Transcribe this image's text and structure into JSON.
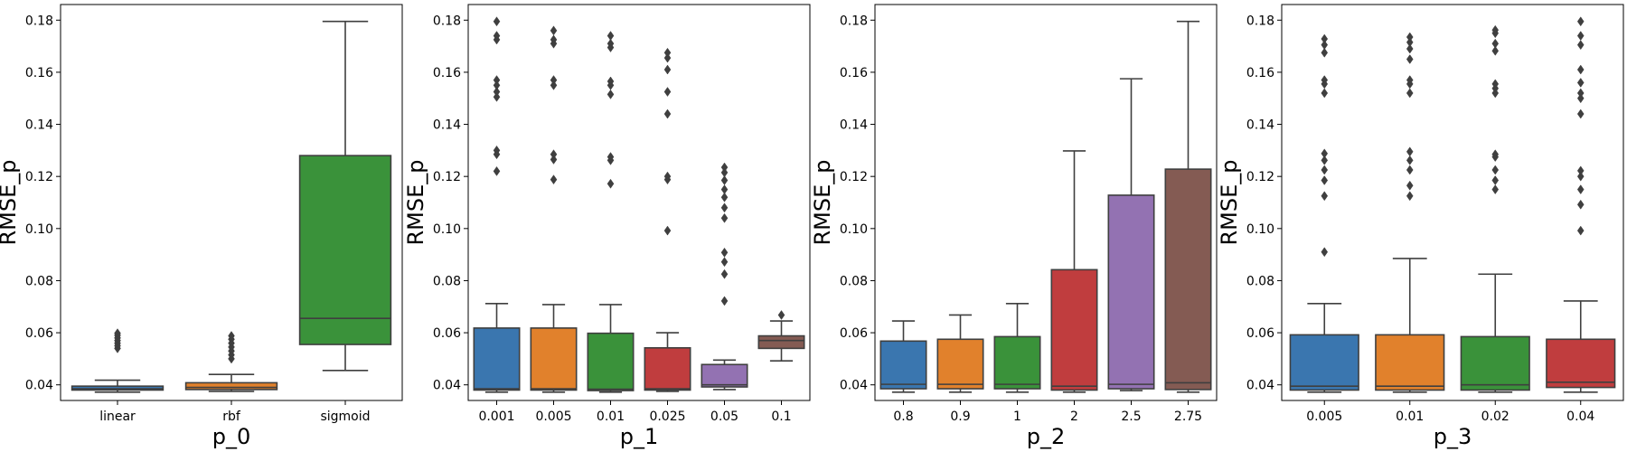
{
  "chart_data": [
    {
      "type": "box",
      "xlabel": "p_0",
      "ylabel": "RMSE_p",
      "ylim": [
        0.034,
        0.186
      ],
      "yticks": [
        0.04,
        0.06,
        0.08,
        0.1,
        0.12,
        0.14,
        0.16,
        0.18
      ],
      "ytick_labels": [
        "0.04",
        "0.06",
        "0.08",
        "0.10",
        "0.12",
        "0.14",
        "0.16",
        "0.18"
      ],
      "categories": [
        "linear",
        "rbf",
        "sigmoid"
      ],
      "colors": [
        "#3a76af",
        "#e1812c",
        "#3a923a"
      ],
      "boxes": [
        {
          "whislo": 0.0372,
          "q1": 0.038,
          "med": 0.0385,
          "q3": 0.0395,
          "whishi": 0.0418,
          "fliers": [
            0.054,
            0.055,
            0.056,
            0.057,
            0.058,
            0.059,
            0.0598
          ]
        },
        {
          "whislo": 0.0375,
          "q1": 0.0382,
          "med": 0.039,
          "q3": 0.0408,
          "whishi": 0.044,
          "fliers": [
            0.05,
            0.0515,
            0.053,
            0.0545,
            0.056,
            0.0575,
            0.0588
          ]
        },
        {
          "whislo": 0.0455,
          "q1": 0.0555,
          "med": 0.0655,
          "q3": 0.128,
          "whishi": 0.1795,
          "fliers": []
        }
      ]
    },
    {
      "type": "box",
      "xlabel": "p_1",
      "ylabel": "RMSE_p",
      "ylim": [
        0.034,
        0.186
      ],
      "yticks": [
        0.04,
        0.06,
        0.08,
        0.1,
        0.12,
        0.14,
        0.16,
        0.18
      ],
      "ytick_labels": [
        "0.04",
        "0.06",
        "0.08",
        "0.10",
        "0.12",
        "0.14",
        "0.16",
        "0.18"
      ],
      "categories": [
        "0.001",
        "0.005",
        "0.01",
        "0.025",
        "0.05",
        "0.1"
      ],
      "colors": [
        "#3a76af",
        "#e1812c",
        "#3a923a",
        "#c03d3e",
        "#9372b2",
        "#845b53"
      ],
      "boxes": [
        {
          "whislo": 0.0372,
          "q1": 0.038,
          "med": 0.0385,
          "q3": 0.0618,
          "whishi": 0.0712,
          "fliers": [
            0.122,
            0.1285,
            0.13,
            0.1505,
            0.1525,
            0.155,
            0.157,
            0.1725,
            0.174,
            0.1795
          ]
        },
        {
          "whislo": 0.0372,
          "q1": 0.038,
          "med": 0.0385,
          "q3": 0.0618,
          "whishi": 0.0708,
          "fliers": [
            0.1188,
            0.1265,
            0.1285,
            0.155,
            0.157,
            0.171,
            0.1725,
            0.176
          ]
        },
        {
          "whislo": 0.0372,
          "q1": 0.0378,
          "med": 0.0383,
          "q3": 0.0598,
          "whishi": 0.0708,
          "fliers": [
            0.1172,
            0.1262,
            0.1275,
            0.1515,
            0.155,
            0.1565,
            0.1695,
            0.171,
            0.174
          ]
        },
        {
          "whislo": 0.0375,
          "q1": 0.038,
          "med": 0.0385,
          "q3": 0.0542,
          "whishi": 0.06,
          "fliers": [
            0.0992,
            0.1188,
            0.12,
            0.144,
            0.1525,
            0.161,
            0.1655,
            0.1675
          ]
        },
        {
          "whislo": 0.0382,
          "q1": 0.0392,
          "med": 0.04,
          "q3": 0.0478,
          "whishi": 0.0495,
          "fliers": [
            0.0722,
            0.0825,
            0.0872,
            0.0908,
            0.104,
            0.108,
            0.112,
            0.115,
            0.1185,
            0.1215,
            0.1235
          ]
        },
        {
          "whislo": 0.0492,
          "q1": 0.054,
          "med": 0.057,
          "q3": 0.0588,
          "whishi": 0.0645,
          "fliers": [
            0.0668
          ]
        }
      ]
    },
    {
      "type": "box",
      "xlabel": "p_2",
      "ylabel": "RMSE_p",
      "ylim": [
        0.034,
        0.186
      ],
      "yticks": [
        0.04,
        0.06,
        0.08,
        0.1,
        0.12,
        0.14,
        0.16,
        0.18
      ],
      "ytick_labels": [
        "0.04",
        "0.06",
        "0.08",
        "0.10",
        "0.12",
        "0.14",
        "0.16",
        "0.18"
      ],
      "categories": [
        "0.8",
        "0.9",
        "1",
        "2",
        "2.5",
        "2.75"
      ],
      "colors": [
        "#3a76af",
        "#e1812c",
        "#3a923a",
        "#c03d3e",
        "#9372b2",
        "#845b53"
      ],
      "boxes": [
        {
          "whislo": 0.0372,
          "q1": 0.0385,
          "med": 0.0402,
          "q3": 0.0568,
          "whishi": 0.0645,
          "fliers": []
        },
        {
          "whislo": 0.0372,
          "q1": 0.0385,
          "med": 0.0402,
          "q3": 0.0575,
          "whishi": 0.0668,
          "fliers": []
        },
        {
          "whislo": 0.0372,
          "q1": 0.0385,
          "med": 0.0402,
          "q3": 0.0585,
          "whishi": 0.0712,
          "fliers": []
        },
        {
          "whislo": 0.0372,
          "q1": 0.038,
          "med": 0.0395,
          "q3": 0.0842,
          "whishi": 0.1298,
          "fliers": []
        },
        {
          "whislo": 0.0378,
          "q1": 0.0385,
          "med": 0.0402,
          "q3": 0.1128,
          "whishi": 0.1575,
          "fliers": []
        },
        {
          "whislo": 0.0372,
          "q1": 0.0382,
          "med": 0.0408,
          "q3": 0.1228,
          "whishi": 0.1795,
          "fliers": []
        }
      ]
    },
    {
      "type": "box",
      "xlabel": "p_3",
      "ylabel": "RMSE_p",
      "ylim": [
        0.034,
        0.186
      ],
      "yticks": [
        0.04,
        0.06,
        0.08,
        0.1,
        0.12,
        0.14,
        0.16,
        0.18
      ],
      "ytick_labels": [
        "0.04",
        "0.06",
        "0.08",
        "0.10",
        "0.12",
        "0.14",
        "0.16",
        "0.18"
      ],
      "categories": [
        "0.005",
        "0.01",
        "0.02",
        "0.04"
      ],
      "colors": [
        "#3a76af",
        "#e1812c",
        "#3a923a",
        "#c03d3e"
      ],
      "boxes": [
        {
          "whislo": 0.0372,
          "q1": 0.038,
          "med": 0.0395,
          "q3": 0.0592,
          "whishi": 0.0712,
          "fliers": [
            0.091,
            0.1125,
            0.1185,
            0.1225,
            0.1262,
            0.1288,
            0.152,
            0.1555,
            0.157,
            0.1675,
            0.1705,
            0.1728
          ]
        },
        {
          "whislo": 0.0372,
          "q1": 0.038,
          "med": 0.0395,
          "q3": 0.0592,
          "whishi": 0.0885,
          "fliers": [
            0.1125,
            0.1165,
            0.1225,
            0.1262,
            0.1295,
            0.152,
            0.1555,
            0.157,
            0.165,
            0.169,
            0.1715,
            0.1735
          ]
        },
        {
          "whislo": 0.0372,
          "q1": 0.038,
          "med": 0.04,
          "q3": 0.0585,
          "whishi": 0.0825,
          "fliers": [
            0.115,
            0.1185,
            0.1225,
            0.1275,
            0.1285,
            0.152,
            0.1538,
            0.1555,
            0.1682,
            0.171,
            0.175,
            0.1762
          ]
        },
        {
          "whislo": 0.0372,
          "q1": 0.039,
          "med": 0.041,
          "q3": 0.0575,
          "whishi": 0.0722,
          "fliers": [
            0.0992,
            0.1092,
            0.115,
            0.12,
            0.1222,
            0.144,
            0.15,
            0.152,
            0.156,
            0.161,
            0.1705,
            0.174,
            0.1795
          ]
        }
      ]
    }
  ]
}
